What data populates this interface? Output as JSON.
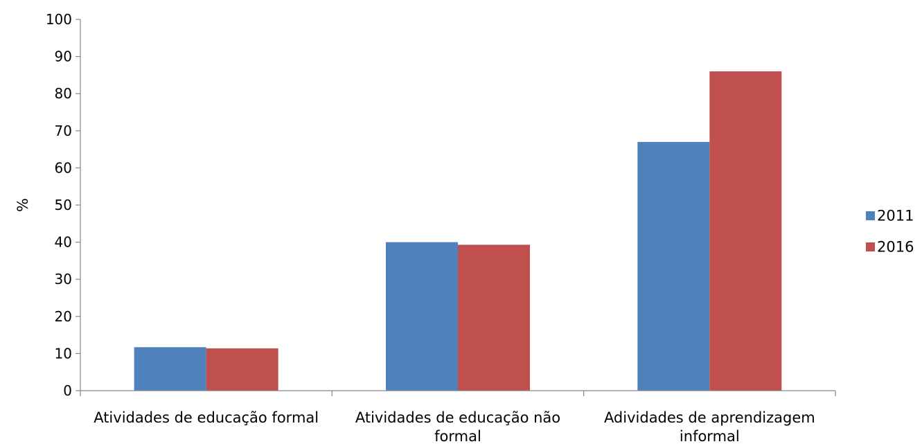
{
  "chart_data": {
    "type": "bar",
    "title": "",
    "xlabel": "",
    "ylabel": "%",
    "ylim": [
      0,
      100
    ],
    "yticks": [
      0,
      10,
      20,
      30,
      40,
      50,
      60,
      70,
      80,
      90,
      100
    ],
    "grid": false,
    "legend_position": "right",
    "categories": [
      [
        "Atividades de educação formal"
      ],
      [
        "Atividades de educação não",
        "formal"
      ],
      [
        "Adividades de aprendizagem",
        "informal"
      ]
    ],
    "series": [
      {
        "name": "2011",
        "color": "#4F81BD",
        "values": [
          11.7,
          40.0,
          67.0
        ]
      },
      {
        "name": "2016",
        "color": "#C0504D",
        "values": [
          11.4,
          39.3,
          86.0
        ]
      }
    ]
  }
}
